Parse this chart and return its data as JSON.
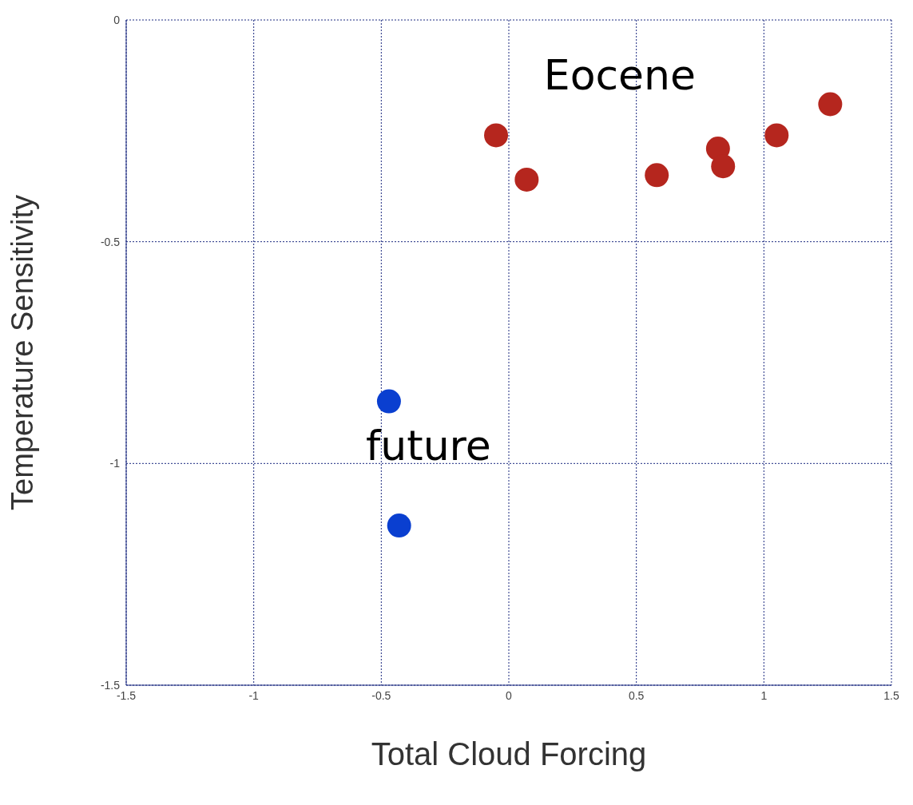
{
  "chart_data": {
    "type": "scatter",
    "xlabel": "Total Cloud Forcing",
    "ylabel": "Temperature Sensitivity",
    "series": [
      {
        "color": "#b5261e",
        "x": [
          -0.05,
          0.07,
          0.58,
          0.82,
          0.84,
          1.05,
          1.26
        ],
        "values": [
          -0.26,
          -0.36,
          -0.35,
          -0.29,
          -0.33,
          -0.26,
          -0.19
        ]
      },
      {
        "color": "#0a3fd0",
        "x": [
          -0.47,
          -0.43
        ],
        "values": [
          -0.86,
          -1.14
        ]
      }
    ],
    "annotations": [
      "Eocene",
      "future"
    ],
    "xlim": [
      -1.5,
      1.5
    ],
    "xticks": [
      -1.5,
      -1,
      -0.5,
      0,
      0.5,
      1,
      1.5
    ],
    "ylim": [
      -1.5,
      0
    ],
    "yticks": [
      -1.5,
      -1,
      -0.5,
      0
    ],
    "grid": true,
    "marker": "circle"
  }
}
